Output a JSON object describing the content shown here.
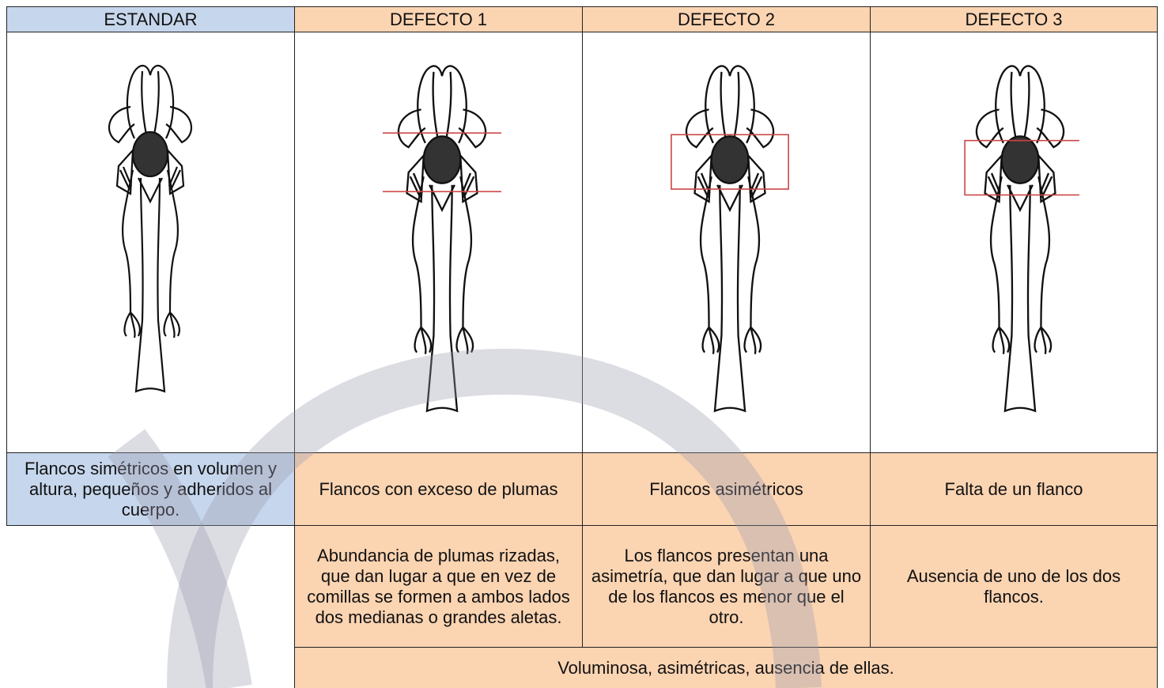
{
  "header": {
    "columns": [
      "ESTANDAR",
      "DEFECTO 1",
      "DEFECTO 2",
      "DEFECTO 3"
    ]
  },
  "summary": [
    "Flancos simétricos en volumen y altura, pequeños y adheridos al cuerpo.",
    "Flancos con exceso de plumas",
    "Flancos asimétricos",
    "Falta de un flanco"
  ],
  "details": [
    "Abundancia de plumas rizadas, que dan lugar a que en vez de comillas se formen a ambos lados dos medianas o grandes aletas.",
    "Los flancos presentan una asimetría, que dan lugar a que uno de los flancos es menor que el otro.",
    "Ausencia de uno de los dos flancos."
  ],
  "footer": "Voluminosa, asimétricas, ausencia de ellas."
}
